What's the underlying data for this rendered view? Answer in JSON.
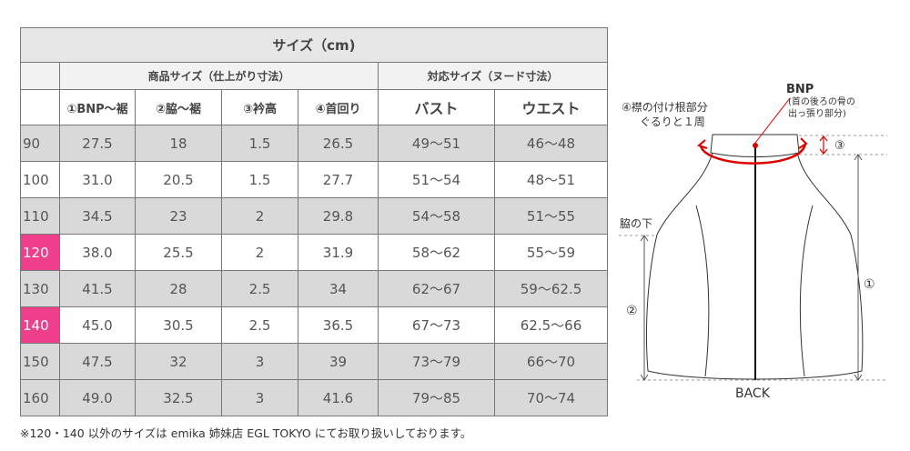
{
  "table": {
    "title": "サイズ（cm)",
    "groups": [
      "商品サイズ（仕上がり寸法）",
      "対応サイズ（ヌード寸法）"
    ],
    "columns": [
      "①BNP〜裾",
      "②脇〜裾",
      "③衿高",
      "④首回り",
      "バスト",
      "ウエスト"
    ],
    "rows": [
      [
        "90",
        "27.5",
        "18",
        "1.5",
        "26.5",
        "49〜51",
        "46〜48"
      ],
      [
        "100",
        "31.0",
        "20.5",
        "1.5",
        "27.7",
        "51〜54",
        "48〜51"
      ],
      [
        "110",
        "34.5",
        "23",
        "2",
        "29.8",
        "54〜58",
        "51〜55"
      ],
      [
        "120",
        "38.0",
        "25.5",
        "2",
        "31.9",
        "58〜62",
        "55〜59"
      ],
      [
        "130",
        "41.5",
        "28",
        "2.5",
        "34",
        "62〜67",
        "59〜62.5"
      ],
      [
        "140",
        "45.0",
        "30.5",
        "2.5",
        "36.5",
        "67〜73",
        "62.5〜66"
      ],
      [
        "150",
        "47.5",
        "32",
        "3",
        "39",
        "73〜79",
        "66〜70"
      ],
      [
        "160",
        "49.0",
        "32.5",
        "3",
        "41.6",
        "79〜85",
        "70〜74"
      ]
    ],
    "note": "※120・140 以外のサイズは emika 姉妹店 EGL TOKYO にてお取り扱いしております。"
  },
  "diagram": {
    "bnp_label": "BNP",
    "bnp_desc": [
      "(首の後ろの骨の",
      "出っ張り部分)"
    ],
    "collar_label": [
      "④襟の付け根部分",
      "ぐるりと１周"
    ],
    "mark_3": "③",
    "armpit_label": "脇の下",
    "mark_1": "①",
    "mark_2": "②",
    "back_label": "BACK"
  }
}
